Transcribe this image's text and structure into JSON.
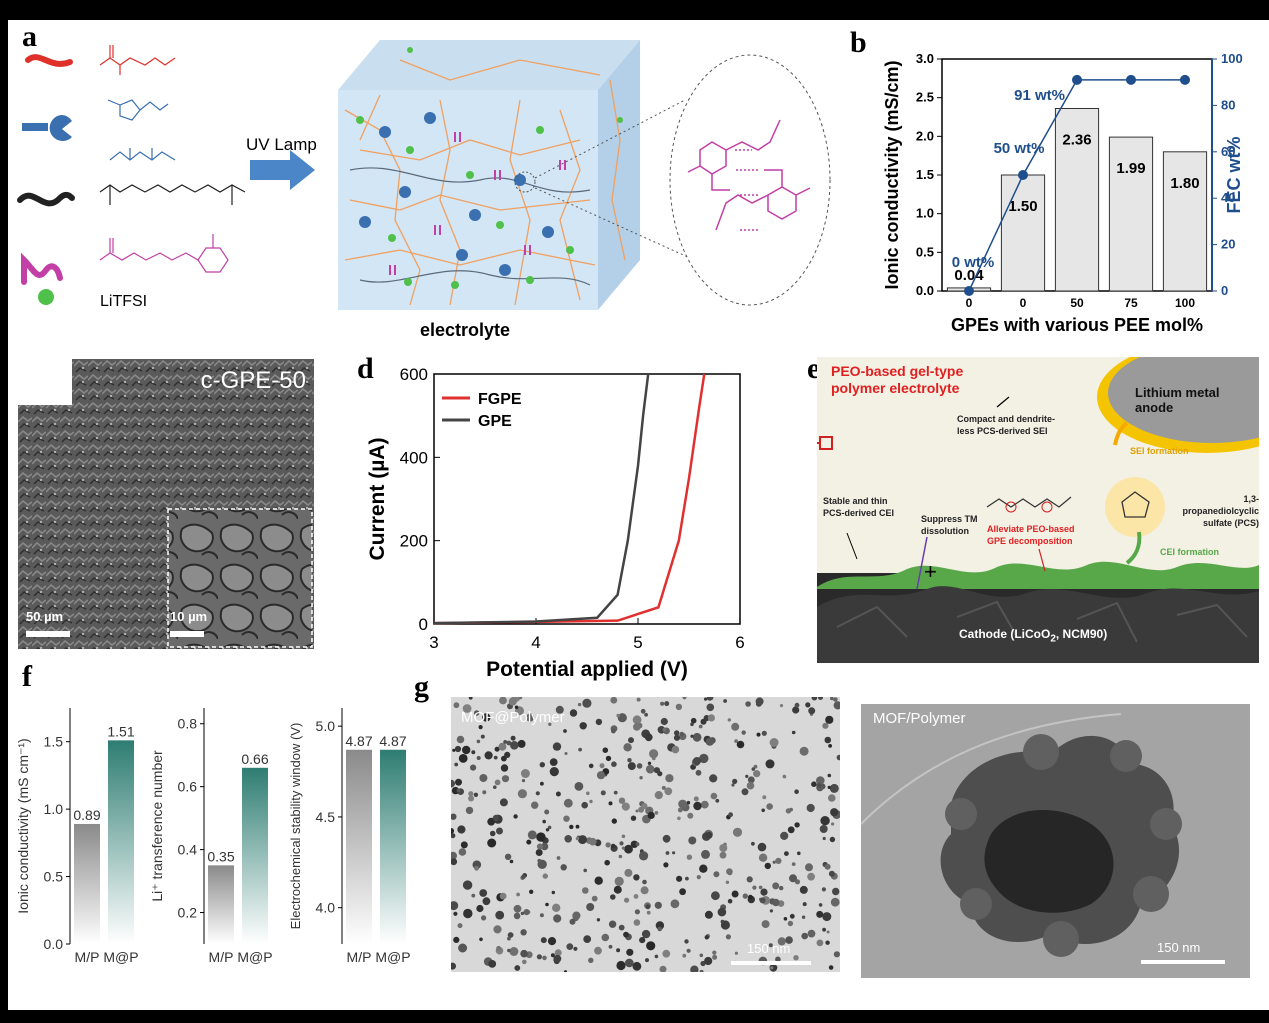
{
  "labels": {
    "a": "a",
    "b": "b",
    "c": "c",
    "d": "d",
    "e": "e",
    "f": "f",
    "g": "g"
  },
  "panel_a": {
    "legend_salt": "LiTFSI",
    "arrow_label": "UV Lamp",
    "caption": "electrolyte",
    "colors": {
      "red": "#e0302a",
      "blue": "#3a6fb0",
      "black": "#222222",
      "magenta": "#c23fa6",
      "green": "#4fc04a"
    }
  },
  "panel_c": {
    "title": "c-GPE-50",
    "scale_main": "50 µm",
    "scale_inset": "10 µm"
  },
  "panel_e": {
    "title_line1": "PEO-based gel-type",
    "title_line2": "polymer electrolyte",
    "anode": "Lithium metal anode",
    "sei_note_1": "Compact and dendrite-",
    "sei_note_2": "less PCS-derived SEI",
    "sei_formation": "SEI formation",
    "cei_note_1": "Stable and thin",
    "cei_note_2": "PCS-derived CEI",
    "tm_1": "Suppress TM",
    "tm_2": "dissolution",
    "alleviate_1": "Alleviate PEO-based",
    "alleviate_2": "GPE decomposition",
    "pcs_1": "1,3-propanediolcyclic",
    "pcs_2": "sulfate (PCS)",
    "cei_formation": "CEI formation",
    "cathode": "Cathode (LiCoO",
    "cathode_sub": "2",
    "cathode_end": ", NCM90)"
  },
  "panel_g": {
    "left_title": "MOF@Polymer",
    "right_title": "MOF/Polymer",
    "scale": "150 nm"
  },
  "chart_data": [
    {
      "id": "b",
      "type": "bar",
      "categories": [
        "0",
        "0",
        "50",
        "75",
        "100"
      ],
      "values": [
        0.04,
        1.5,
        2.36,
        1.99,
        1.8
      ],
      "value_labels": [
        "0.04",
        "1.50",
        "2.36",
        "1.99",
        "1.80"
      ],
      "xlabel": "GPEs with various PEE mol%",
      "ylabel": "Ionic conductivity (mS/cm)",
      "ylim": [
        0,
        3.0
      ],
      "yticks": [
        "0.0",
        "0.5",
        "1.0",
        "1.5",
        "2.0",
        "2.5",
        "3.0"
      ],
      "secondary": {
        "type": "line",
        "ylabel": "FEC wt%",
        "ylim": [
          0,
          100
        ],
        "yticks": [
          "0",
          "20",
          "40",
          "60",
          "80",
          "100"
        ],
        "values": [
          0,
          50,
          91,
          91,
          91
        ],
        "annotations": [
          "0 wt%",
          "50 wt%",
          "91 wt%"
        ],
        "color": "#1f4e8c"
      }
    },
    {
      "id": "d",
      "type": "line",
      "xlabel": "Potential applied (V)",
      "ylabel": "Current (µA)",
      "xlim": [
        3,
        6
      ],
      "ylim": [
        0,
        600
      ],
      "xticks": [
        "3",
        "4",
        "5",
        "6"
      ],
      "yticks": [
        "0",
        "200",
        "400",
        "600"
      ],
      "series": [
        {
          "name": "FGPE",
          "color": "#e03030",
          "x": [
            3.0,
            4.0,
            4.8,
            5.2,
            5.4,
            5.5,
            5.6,
            5.65
          ],
          "y": [
            2,
            5,
            8,
            40,
            200,
            350,
            520,
            600
          ]
        },
        {
          "name": "GPE",
          "color": "#444444",
          "x": [
            3.0,
            4.0,
            4.6,
            4.8,
            4.9,
            5.0,
            5.05,
            5.1
          ],
          "y": [
            2,
            6,
            15,
            70,
            200,
            380,
            500,
            600
          ]
        }
      ]
    },
    {
      "id": "f1",
      "type": "bar",
      "categories": [
        "M/P",
        "M@P"
      ],
      "values": [
        0.89,
        1.51
      ],
      "value_labels": [
        "0.89",
        "1.51"
      ],
      "ylabel": "Ionic conductivity (mS cm⁻¹)",
      "ylim": [
        0,
        1.75
      ],
      "yticks": [
        "0.0",
        "0.5",
        "1.0",
        "1.5"
      ]
    },
    {
      "id": "f2",
      "type": "bar",
      "categories": [
        "M/P",
        "M@P"
      ],
      "values": [
        0.35,
        0.66
      ],
      "value_labels": [
        "0.35",
        "0.66"
      ],
      "ylabel": "Li⁺ transference number",
      "ylim": [
        0.1,
        0.85
      ],
      "yticks": [
        "0.2",
        "0.4",
        "0.6",
        "0.8"
      ]
    },
    {
      "id": "f3",
      "type": "bar",
      "categories": [
        "M/P",
        "M@P"
      ],
      "values": [
        4.87,
        4.87
      ],
      "value_labels": [
        "4.87",
        "4.87"
      ],
      "ylabel": "Electrochemical stability window (V)",
      "ylim": [
        3.8,
        5.1
      ],
      "yticks": [
        "4.0",
        "4.5",
        "5.0"
      ]
    }
  ]
}
